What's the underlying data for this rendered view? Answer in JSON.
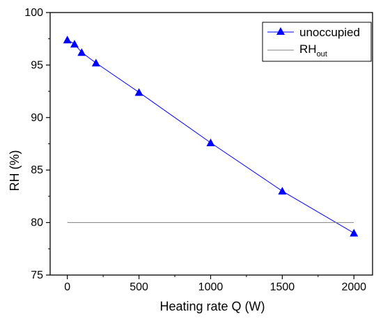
{
  "chart_data": {
    "type": "line",
    "xlabel": "Heating rate Q (W)",
    "ylabel": "RH (%)",
    "xlim": [
      -120,
      2130
    ],
    "ylim": [
      75,
      100
    ],
    "x_ticks": [
      0,
      500,
      1000,
      1500,
      2000
    ],
    "y_ticks": [
      75,
      80,
      85,
      90,
      95,
      100
    ],
    "x_tick_labels": [
      "0",
      "500",
      "1000",
      "1500",
      "2000"
    ],
    "y_tick_labels": [
      "75",
      "80",
      "85",
      "90",
      "95",
      "100"
    ],
    "grid": false,
    "legend_position": "top-right",
    "series": [
      {
        "name": "unoccupied",
        "color": "#0000ff",
        "marker": "triangle",
        "x": [
          0,
          50,
          100,
          200,
          500,
          1000,
          1500,
          2000
        ],
        "y": [
          97.4,
          97.0,
          96.2,
          95.2,
          92.4,
          87.6,
          83.0,
          79.0
        ]
      },
      {
        "name_main": "RH",
        "name_sub": "out",
        "color": "#808080",
        "marker": "none",
        "x": [
          0,
          2000
        ],
        "y": [
          80,
          80
        ]
      }
    ]
  }
}
